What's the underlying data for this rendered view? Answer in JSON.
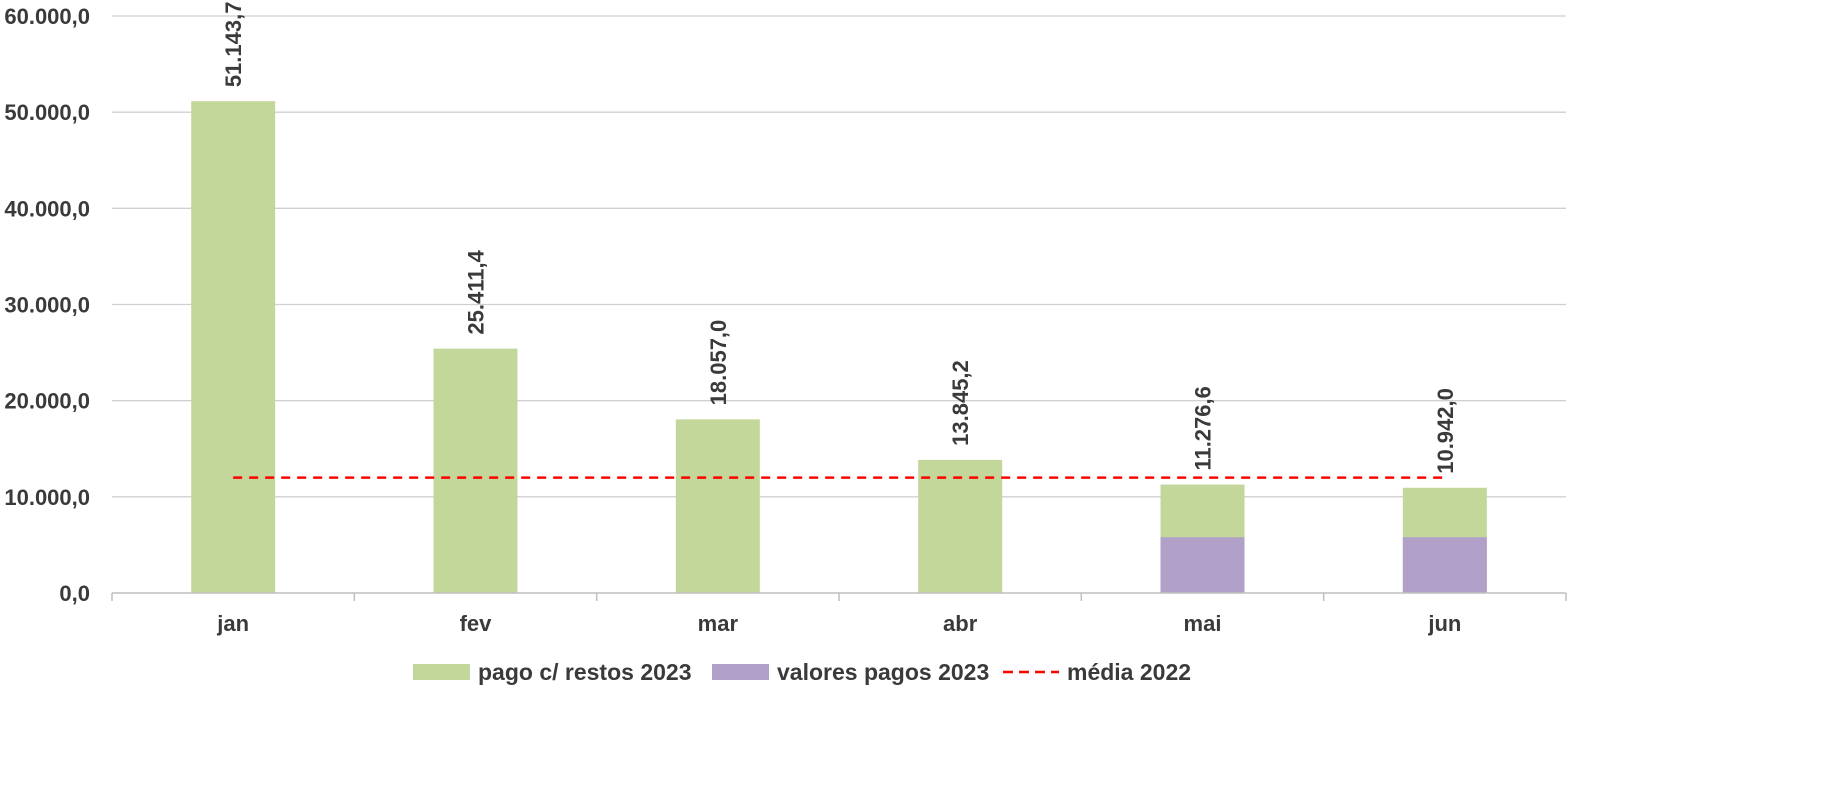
{
  "chart_data": {
    "type": "bar",
    "title": "",
    "xlabel": "",
    "ylabel": "",
    "ylim": [
      0,
      60000
    ],
    "yticks": [
      0,
      10000,
      20000,
      30000,
      40000,
      50000,
      60000
    ],
    "ytick_labels": [
      "0,0",
      "10.000,0",
      "20.000,0",
      "30.000,0",
      "40.000,0",
      "50.000,0",
      "60.000,0"
    ],
    "grid": true,
    "legend_position": "bottom",
    "categories": [
      "jan",
      "fev",
      "mar",
      "abr",
      "mai",
      "jun"
    ],
    "series": [
      {
        "name": "pago c/ restos 2023",
        "type": "bar",
        "color": "#c4d79b",
        "values": [
          51143.7,
          25411.4,
          18057.0,
          13845.2,
          11276.6,
          10942.0
        ],
        "labels": [
          "51.143,7",
          "25.411,4",
          "18.057,0",
          "13.845,2",
          "11.276,6",
          "10.942,0"
        ]
      },
      {
        "name": "valores pagos 2023",
        "type": "bar",
        "color": "#b1a0c7",
        "values": [
          null,
          null,
          null,
          null,
          5800,
          5800
        ]
      },
      {
        "name": "média 2022",
        "type": "line",
        "style": "dashed",
        "color": "#ff0000",
        "values": [
          12000,
          12000,
          12000,
          12000,
          12000,
          12000
        ]
      }
    ]
  }
}
